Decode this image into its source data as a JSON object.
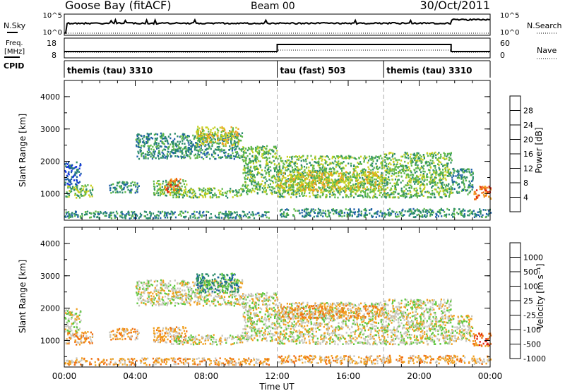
{
  "header": {
    "station": "Goose Bay (fitACF)",
    "beam": "Beam 00",
    "date": "30/Oct/2011"
  },
  "strip_labels": {
    "nsky": "N.Sky",
    "nsky_ticks": [
      "10^5",
      "10^0"
    ],
    "nsearch": "N.Search",
    "nsearch_ticks": [
      "10^5",
      "10^0"
    ],
    "freq_line1": "Freq.",
    "freq_line2": "[MHz]",
    "freq_ticks": [
      "18",
      "8"
    ],
    "nave": "Nave",
    "nave_ticks": [
      "60",
      "0"
    ],
    "cpid": "CPID"
  },
  "cpid_segments": [
    {
      "label": "themis (tau) 3310",
      "start_hour": 0
    },
    {
      "label": "tau (fast) 503",
      "start_hour": 12
    },
    {
      "label": "themis (tau) 3310",
      "start_hour": 18
    }
  ],
  "axes": {
    "ylabel": "Slant Range [km]",
    "xlabel": "Time UT",
    "yticks": [
      "1000",
      "2000",
      "3000",
      "4000"
    ],
    "xticks": [
      "00:00",
      "04:00",
      "08:00",
      "12:00",
      "16:00",
      "20:00",
      "00:00"
    ]
  },
  "colorbars": {
    "power": {
      "label": "Power [dB]",
      "ticks": [
        "4",
        "8",
        "12",
        "16",
        "20",
        "24",
        "28"
      ],
      "colors": [
        "#1030e0",
        "#1e5fa8",
        "#2b8c6a",
        "#5fb84a",
        "#c8d020",
        "#f0a020",
        "#f07010",
        "#e02010"
      ]
    },
    "velocity": {
      "label": "Velocity [m s⁻¹]",
      "ticks": [
        "1000",
        "500",
        "100",
        "25",
        "-25",
        "-100",
        "-500",
        "-1000"
      ],
      "colors": [
        "#1030e0",
        "#1e5fa8",
        "#2b8c6a",
        "#5fc840",
        "#c8c8c0",
        "#f0a020",
        "#f07010",
        "#e02010"
      ]
    }
  },
  "chart_data": [
    {
      "type": "heatmap",
      "name": "Power",
      "xlabel": "Time UT",
      "ylabel": "Slant Range [km]",
      "xlim_hours": [
        0,
        24
      ],
      "ylim_km": [
        180,
        4500
      ],
      "colorbar_label": "Power [dB]",
      "regions": [
        {
          "t0": 0.0,
          "t1": 1.6,
          "r0": 900,
          "r1": 1300,
          "level": 3
        },
        {
          "t0": 0.0,
          "t1": 0.9,
          "r0": 1300,
          "r1": 2000,
          "level": 1
        },
        {
          "t0": 2.5,
          "t1": 4.2,
          "r0": 1050,
          "r1": 1400,
          "level": 2
        },
        {
          "t0": 5.0,
          "t1": 6.9,
          "r0": 950,
          "r1": 1450,
          "level": 3
        },
        {
          "t0": 5.6,
          "t1": 6.5,
          "r0": 1050,
          "r1": 1500,
          "level": 6
        },
        {
          "t0": 4.0,
          "t1": 10.0,
          "r0": 2100,
          "r1": 2900,
          "level": 2
        },
        {
          "t0": 7.4,
          "t1": 9.8,
          "r0": 2500,
          "r1": 3100,
          "level": 4
        },
        {
          "t0": 6.0,
          "t1": 10.0,
          "r0": 900,
          "r1": 1200,
          "level": 3
        },
        {
          "t0": 10.0,
          "t1": 12.0,
          "r0": 1000,
          "r1": 2500,
          "level": 3
        },
        {
          "t0": 12.0,
          "t1": 18.0,
          "r0": 900,
          "r1": 2200,
          "level": 3
        },
        {
          "t0": 12.0,
          "t1": 18.0,
          "r0": 1100,
          "r1": 1700,
          "level": 4
        },
        {
          "t0": 18.0,
          "t1": 21.8,
          "r0": 900,
          "r1": 2300,
          "level": 3
        },
        {
          "t0": 21.8,
          "t1": 23.0,
          "r0": 1000,
          "r1": 1800,
          "level": 2
        },
        {
          "t0": 23.0,
          "t1": 24.0,
          "r0": 850,
          "r1": 1250,
          "level": 6
        },
        {
          "t0": 0.0,
          "t1": 11.5,
          "r0": 260,
          "r1": 480,
          "level": 2
        },
        {
          "t0": 12.0,
          "t1": 24.0,
          "r0": 300,
          "r1": 560,
          "level": 2
        }
      ]
    },
    {
      "type": "heatmap",
      "name": "Velocity",
      "xlabel": "Time UT",
      "ylabel": "Slant Range [km]",
      "xlim_hours": [
        0,
        24
      ],
      "ylim_km": [
        180,
        4500
      ],
      "colorbar_label": "Velocity [m s⁻¹]",
      "regions": [
        {
          "t0": 0.0,
          "t1": 1.6,
          "r0": 900,
          "r1": 1300,
          "level": 5
        },
        {
          "t0": 0.0,
          "t1": 0.9,
          "r0": 1300,
          "r1": 2000,
          "level": 4
        },
        {
          "t0": 2.5,
          "t1": 4.2,
          "r0": 1050,
          "r1": 1400,
          "level": 5
        },
        {
          "t0": 5.0,
          "t1": 6.9,
          "r0": 950,
          "r1": 1450,
          "level": 5
        },
        {
          "t0": 4.0,
          "t1": 10.0,
          "r0": 2100,
          "r1": 2900,
          "level": 4
        },
        {
          "t0": 7.4,
          "t1": 9.8,
          "r0": 2500,
          "r1": 3100,
          "level": 2
        },
        {
          "t0": 6.0,
          "t1": 10.0,
          "r0": 900,
          "r1": 1200,
          "level": 4
        },
        {
          "t0": 10.0,
          "t1": 12.0,
          "r0": 1000,
          "r1": 2500,
          "level": 4
        },
        {
          "t0": 12.0,
          "t1": 18.0,
          "r0": 900,
          "r1": 2200,
          "level": 4
        },
        {
          "t0": 12.0,
          "t1": 18.0,
          "r0": 1700,
          "r1": 2100,
          "level": 5
        },
        {
          "t0": 18.0,
          "t1": 21.8,
          "r0": 900,
          "r1": 2300,
          "level": 4
        },
        {
          "t0": 21.8,
          "t1": 23.0,
          "r0": 1000,
          "r1": 1800,
          "level": 4
        },
        {
          "t0": 23.0,
          "t1": 24.0,
          "r0": 850,
          "r1": 1250,
          "level": 6
        },
        {
          "t0": 0.0,
          "t1": 11.5,
          "r0": 260,
          "r1": 480,
          "level": 5
        },
        {
          "t0": 12.0,
          "t1": 24.0,
          "r0": 300,
          "r1": 560,
          "level": 5
        }
      ]
    }
  ]
}
